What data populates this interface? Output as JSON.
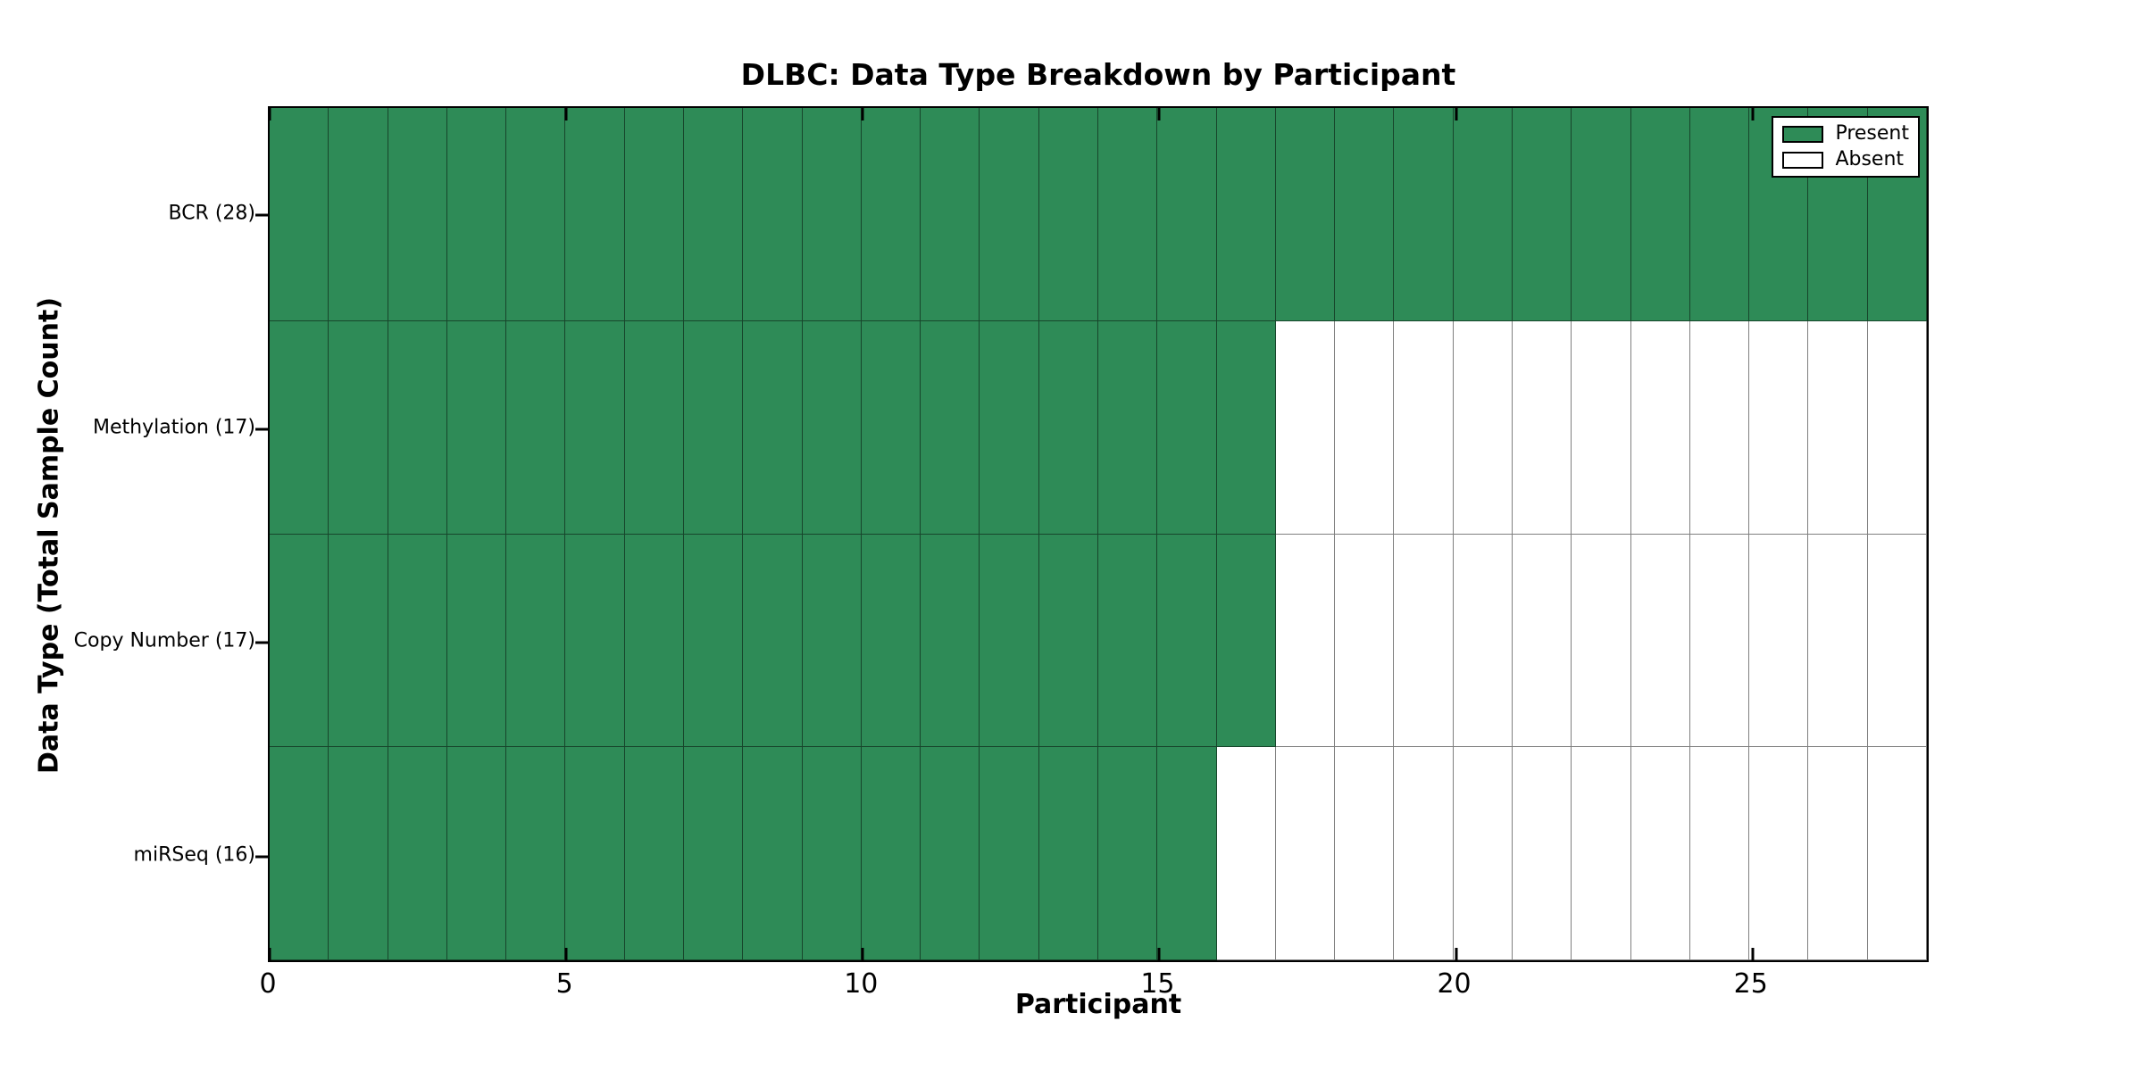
{
  "chart_data": {
    "type": "heatmap",
    "title": "DLBC: Data Type Breakdown by Participant",
    "xlabel": "Participant",
    "ylabel": "Data Type (Total Sample Count)",
    "xlim": [
      0,
      28
    ],
    "x_ticks": [
      0,
      5,
      10,
      15,
      20,
      25
    ],
    "n_participants": 28,
    "grid": true,
    "rows": [
      {
        "label": "BCR (28)",
        "data_type": "BCR",
        "total_samples": 28,
        "present_count": 28
      },
      {
        "label": "Methylation (17)",
        "data_type": "Methylation",
        "total_samples": 17,
        "present_count": 17
      },
      {
        "label": "Copy Number (17)",
        "data_type": "Copy Number",
        "total_samples": 17,
        "present_count": 17
      },
      {
        "label": "miRSeq (16)",
        "data_type": "miRSeq",
        "total_samples": 16,
        "present_count": 16
      }
    ],
    "legend": {
      "position": "upper right",
      "items": [
        {
          "label": "Present",
          "color": "#2e8b57"
        },
        {
          "label": "Absent",
          "color": "#ffffff"
        }
      ]
    },
    "colors": {
      "present": "#2e8b57",
      "absent": "#ffffff",
      "cell_border": "rgba(0,0,0,0.5)",
      "spine": "#000000",
      "text": "#000000"
    }
  }
}
